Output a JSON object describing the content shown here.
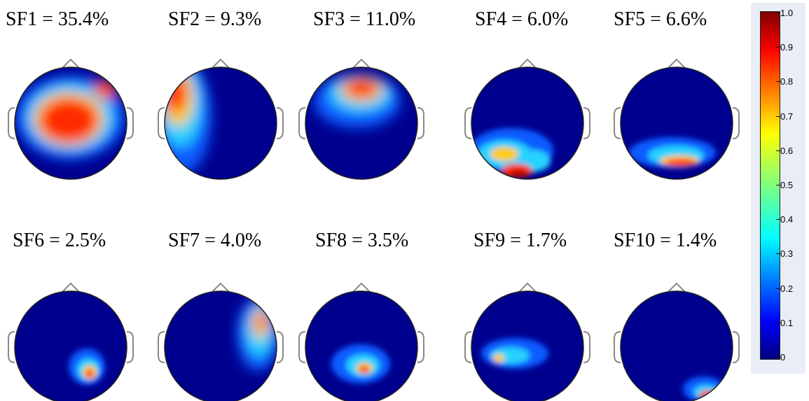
{
  "maps": [
    {
      "label": "SF1 = 35.4%"
    },
    {
      "label": "SF2 = 9.3%"
    },
    {
      "label": "SF3 = 11.0%"
    },
    {
      "label": "SF4 = 6.0%"
    },
    {
      "label": "SF5 = 6.6%"
    },
    {
      "label": "SF6 = 2.5%"
    },
    {
      "label": "SF7 = 4.0%"
    },
    {
      "label": "SF8 = 3.5%"
    },
    {
      "label": "SF9 = 1.7%"
    },
    {
      "label": "SF10 = 1.4%"
    }
  ],
  "colorbar": {
    "ticks": [
      "1.0",
      "0.9",
      "0.8",
      "0.7",
      "0.6",
      "0.5",
      "0.4",
      "0.3",
      "0.2",
      "0.1",
      "0"
    ],
    "colormap": "jet",
    "colors": [
      "#00007f",
      "#0000ff",
      "#007fff",
      "#00ffff",
      "#7fff7f",
      "#ffff00",
      "#ff7f00",
      "#ff0000",
      "#7f0000"
    ]
  }
}
